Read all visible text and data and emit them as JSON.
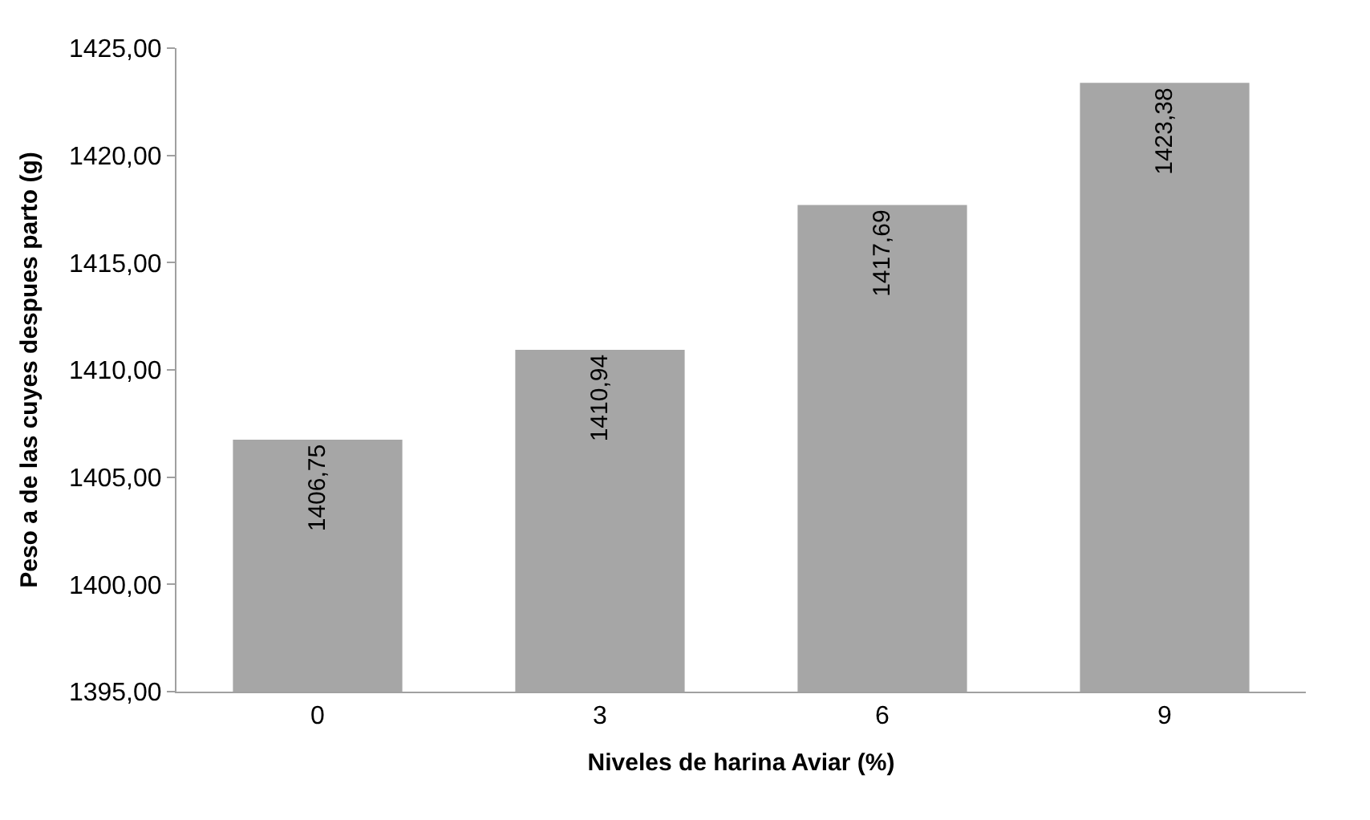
{
  "chart_data": {
    "type": "bar",
    "xlabel": "Niveles de harina Aviar (%)",
    "ylabel": "Peso a de las cuyes despues parto (g)",
    "categories": [
      "0",
      "3",
      "6",
      "9"
    ],
    "values": [
      1406.75,
      1410.94,
      1417.69,
      1423.38
    ],
    "value_labels": [
      "1406,75",
      "1410,94",
      "1417,69",
      "1423,38"
    ],
    "color": "#a6a6a6",
    "ylim": [
      1395,
      1425
    ],
    "yticks": [
      {
        "value": 1395,
        "label": "1395,00"
      },
      {
        "value": 1400,
        "label": "1400,00"
      },
      {
        "value": 1405,
        "label": "1405,00"
      },
      {
        "value": 1410,
        "label": "1410,00"
      },
      {
        "value": 1415,
        "label": "1415,00"
      },
      {
        "value": 1420,
        "label": "1420,00"
      },
      {
        "value": 1425,
        "label": "1425,00"
      }
    ]
  }
}
